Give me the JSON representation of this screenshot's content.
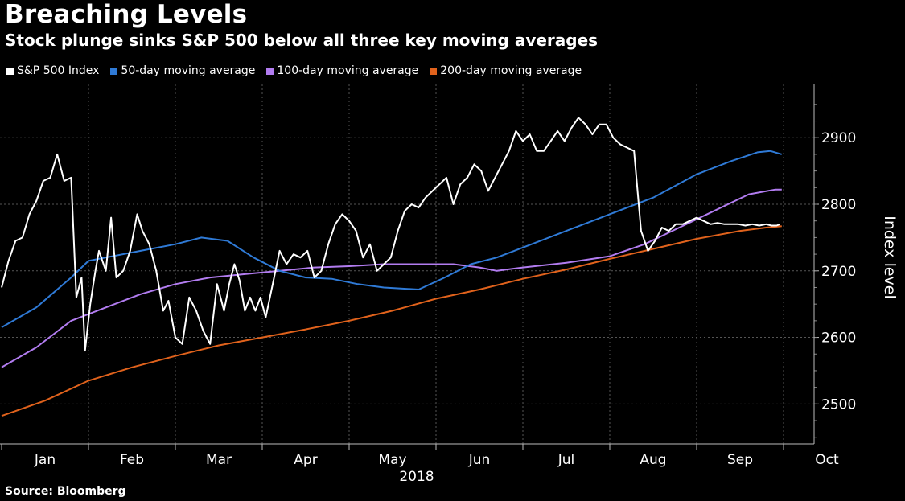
{
  "chart_data": {
    "type": "line",
    "title": "Breaching Levels",
    "subtitle": "Stock plunge sinks S&P 500 below all three key moving averages",
    "ylabel": "Index level",
    "xlabel": "2018",
    "ylim": [
      2440,
      2980
    ],
    "yticks": [
      "2500",
      "2600",
      "2700",
      "2800",
      "2900"
    ],
    "ytick_values": [
      2500,
      2600,
      2700,
      2800,
      2900
    ],
    "months": [
      "Jan",
      "Feb",
      "Mar",
      "Apr",
      "May",
      "Jun",
      "Jul",
      "Aug",
      "Sep",
      "Oct"
    ],
    "x_start": 0,
    "x_end": 9.1,
    "series": [
      {
        "name": "S&P 500 Index",
        "color": "#ffffff",
        "x": [
          0.0,
          0.08,
          0.16,
          0.24,
          0.32,
          0.4,
          0.48,
          0.56,
          0.64,
          0.72,
          0.8,
          0.86,
          0.92,
          0.96,
          1.02,
          1.08,
          1.12,
          1.16,
          1.2,
          1.26,
          1.32,
          1.4,
          1.48,
          1.56,
          1.62,
          1.7,
          1.78,
          1.86,
          1.92,
          2.0,
          2.08,
          2.16,
          2.24,
          2.32,
          2.4,
          2.48,
          2.56,
          2.62,
          2.68,
          2.74,
          2.8,
          2.86,
          2.92,
          2.98,
          3.04,
          3.12,
          3.2,
          3.28,
          3.36,
          3.44,
          3.52,
          3.6,
          3.68,
          3.76,
          3.84,
          3.92,
          4.0,
          4.08,
          4.16,
          4.24,
          4.32,
          4.4,
          4.48,
          4.56,
          4.64,
          4.72,
          4.8,
          4.88,
          4.96,
          5.04,
          5.12,
          5.2,
          5.28,
          5.36,
          5.44,
          5.52,
          5.6,
          5.68,
          5.76,
          5.84,
          5.92,
          6.0,
          6.08,
          6.16,
          6.24,
          6.32,
          6.4,
          6.48,
          6.56,
          6.64,
          6.72,
          6.8,
          6.88,
          6.96,
          7.04,
          7.12,
          7.2,
          7.28,
          7.36,
          7.44,
          7.52,
          7.6,
          7.68,
          7.76,
          7.84,
          7.92,
          8.0,
          8.08,
          8.16,
          8.24,
          8.32,
          8.4,
          8.48,
          8.56,
          8.64,
          8.72,
          8.8,
          8.86,
          8.92,
          8.96,
          9.0,
          9.04
        ],
        "values": [
          2675,
          2715,
          2745,
          2750,
          2785,
          2805,
          2835,
          2840,
          2875,
          2835,
          2840,
          2660,
          2690,
          2580,
          2650,
          2700,
          2730,
          2715,
          2700,
          2780,
          2690,
          2700,
          2730,
          2785,
          2760,
          2740,
          2700,
          2640,
          2655,
          2600,
          2590,
          2660,
          2640,
          2610,
          2590,
          2680,
          2640,
          2680,
          2710,
          2685,
          2640,
          2660,
          2640,
          2660,
          2630,
          2680,
          2730,
          2710,
          2725,
          2720,
          2730,
          2690,
          2700,
          2740,
          2770,
          2785,
          2775,
          2760,
          2720,
          2740,
          2700,
          2710,
          2720,
          2760,
          2790,
          2800,
          2795,
          2810,
          2820,
          2830,
          2840,
          2800,
          2830,
          2840,
          2860,
          2850,
          2820,
          2840,
          2860,
          2880,
          2910,
          2895,
          2905,
          2880,
          2880,
          2895,
          2910,
          2895,
          2915,
          2930,
          2920,
          2905,
          2920,
          2920,
          2900,
          2890,
          2885,
          2880,
          2760,
          2730,
          2745,
          2765,
          2760,
          2770,
          2770,
          2775,
          2780,
          2775,
          2770,
          2772,
          2770,
          2770,
          2770,
          2768,
          2770,
          2768,
          2770,
          2768,
          2768,
          2770,
          2768,
          2768
        ],
        "visible_until": 8.98
      },
      {
        "name": "50-day moving average",
        "color": "#2f7ad6",
        "x": [
          0.0,
          0.4,
          0.8,
          1.0,
          1.2,
          1.6,
          2.0,
          2.3,
          2.6,
          2.9,
          3.2,
          3.5,
          3.8,
          4.1,
          4.4,
          4.8,
          5.1,
          5.4,
          5.7,
          6.0,
          6.5,
          7.0,
          7.5,
          8.0,
          8.4,
          8.7,
          8.85,
          8.98
        ],
        "values": [
          2615,
          2645,
          2690,
          2715,
          2720,
          2730,
          2740,
          2750,
          2745,
          2720,
          2700,
          2690,
          2688,
          2680,
          2675,
          2672,
          2690,
          2710,
          2720,
          2735,
          2760,
          2785,
          2810,
          2845,
          2865,
          2878,
          2880,
          2875
        ]
      },
      {
        "name": "100-day moving average",
        "color": "#b27cf0",
        "x": [
          0.0,
          0.4,
          0.8,
          1.2,
          1.6,
          2.0,
          2.4,
          2.8,
          3.2,
          3.6,
          4.0,
          4.4,
          4.8,
          5.2,
          5.5,
          5.7,
          6.0,
          6.5,
          7.0,
          7.4,
          7.8,
          8.2,
          8.6,
          8.9,
          8.98
        ],
        "values": [
          2555,
          2585,
          2625,
          2645,
          2665,
          2680,
          2690,
          2695,
          2700,
          2705,
          2707,
          2710,
          2710,
          2710,
          2705,
          2700,
          2705,
          2712,
          2722,
          2740,
          2765,
          2790,
          2815,
          2822,
          2822
        ]
      },
      {
        "name": "200-day moving average",
        "color": "#e0621c",
        "x": [
          0.0,
          0.5,
          1.0,
          1.5,
          2.0,
          2.5,
          3.0,
          3.5,
          4.0,
          4.5,
          5.0,
          5.5,
          6.0,
          6.5,
          7.0,
          7.5,
          8.0,
          8.5,
          8.8,
          8.98
        ],
        "values": [
          2482,
          2505,
          2535,
          2555,
          2572,
          2588,
          2600,
          2612,
          2625,
          2640,
          2658,
          2672,
          2688,
          2702,
          2718,
          2733,
          2748,
          2760,
          2765,
          2767
        ]
      }
    ]
  },
  "source": "Source: Bloomberg"
}
